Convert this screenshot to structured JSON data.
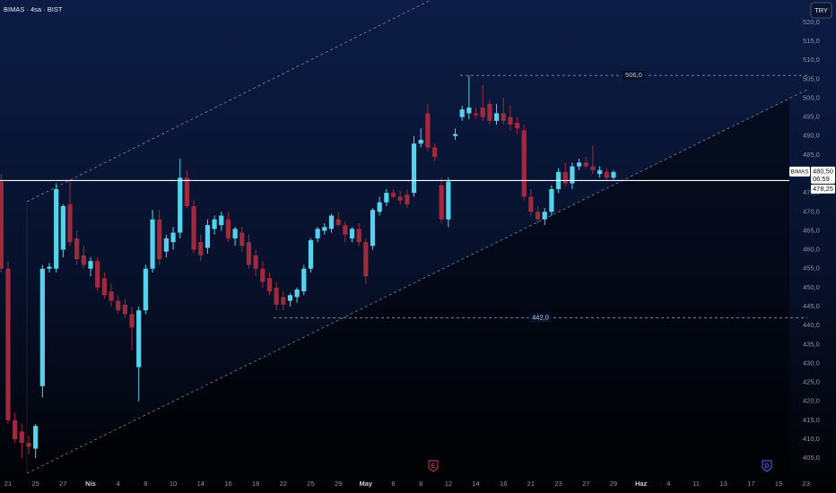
{
  "chart_data": {
    "type": "candlestick",
    "title": "BIMAS · 4sa · BIST",
    "currency": "TRY",
    "symbol": "BIMAS",
    "up_color": "#56d3ec",
    "down_color": "#9e2a3e",
    "open": [
      478,
      455,
      415,
      412,
      409,
      407.5,
      424,
      455,
      455,
      460,
      472,
      463,
      458.5,
      455,
      457,
      452.5,
      449,
      446.5,
      445.5,
      443,
      429,
      444,
      455,
      468,
      459.5,
      462,
      464.5,
      479,
      471.5,
      462,
      460.5,
      465.5,
      466.5,
      468,
      463,
      464.5,
      462,
      458.5,
      455,
      452.5,
      450,
      447.5,
      446.5,
      447.5,
      449,
      455,
      463,
      465,
      465.5,
      468,
      466.5,
      463,
      465.5,
      462,
      461,
      470,
      472.5,
      475,
      474,
      474.5,
      475,
      488,
      496,
      487,
      477,
      468,
      490,
      495,
      496,
      496,
      497.5,
      498.5,
      494,
      496,
      495,
      493.5,
      491.5,
      474,
      470,
      468,
      470,
      476,
      480.5,
      477.5,
      482,
      483,
      482,
      480,
      480.5,
      479
    ],
    "high": [
      480,
      457,
      417,
      414,
      411,
      414,
      456,
      456.5,
      477.5,
      472,
      478.5,
      465,
      461,
      458,
      458,
      454,
      451,
      448,
      447,
      445,
      445,
      456,
      470.5,
      470.5,
      464,
      466,
      484,
      481,
      473,
      464,
      468,
      469,
      470,
      470,
      466,
      466,
      464,
      460,
      457,
      454,
      451.5,
      449,
      448.5,
      450,
      456,
      463,
      466,
      467,
      469.5,
      470,
      467.5,
      466,
      467,
      463,
      471,
      474,
      476,
      476,
      475.5,
      476,
      490,
      492,
      498.5,
      488,
      479,
      479,
      492,
      498,
      506,
      497.5,
      503.5,
      499.5,
      498.5,
      500,
      498,
      495,
      493,
      476,
      471.5,
      471,
      477,
      481.5,
      483,
      483,
      484,
      484.5,
      487.5,
      482,
      481.5,
      481
    ],
    "low": [
      454,
      414,
      409,
      405,
      406,
      405,
      421,
      454,
      454,
      458,
      461,
      456,
      455,
      453,
      449,
      447,
      445,
      443,
      442,
      433.5,
      420,
      443,
      454,
      456,
      458,
      460,
      463,
      471,
      459,
      457,
      459,
      464,
      465,
      462,
      461,
      459.5,
      455,
      453,
      450,
      448,
      444,
      444,
      445,
      446,
      448,
      454,
      462,
      464,
      464.5,
      466,
      462,
      462,
      461,
      451,
      460,
      469,
      471.5,
      473.5,
      472,
      471,
      474,
      487,
      486,
      483.5,
      467,
      466,
      489,
      494,
      494.5,
      494.5,
      494,
      493,
      493,
      493,
      491.5,
      490.5,
      473,
      469,
      467,
      466.5,
      469,
      475,
      476.5,
      476,
      481,
      481.5,
      480,
      479,
      478,
      478.5
    ],
    "close": [
      455,
      415,
      410,
      409,
      408,
      413.5,
      455,
      455.5,
      476,
      471.5,
      462,
      457.5,
      456,
      457,
      450,
      448,
      446.5,
      444,
      443,
      439.5,
      444,
      455,
      468,
      457.5,
      463,
      464.5,
      479,
      471.5,
      460,
      458.5,
      466.5,
      468,
      469,
      463,
      465.5,
      461,
      456,
      455,
      451.5,
      449,
      445.5,
      445.5,
      448,
      449.5,
      455,
      462.5,
      465.5,
      466,
      469,
      466.5,
      464,
      465.5,
      462,
      453,
      470.5,
      472.5,
      475,
      474,
      473,
      472,
      488,
      489,
      487,
      484.5,
      468,
      478,
      490.5,
      497,
      497.5,
      495.5,
      495,
      494,
      496,
      494,
      493,
      492,
      474,
      470,
      468,
      470,
      476,
      480.5,
      477.5,
      482,
      483,
      482,
      481,
      481,
      479,
      480.5
    ],
    "xlim": [
      -0.17,
      121.34
    ],
    "ylim": [
      401,
      525.9
    ],
    "xticks": [
      {
        "value": 1,
        "label": "21"
      },
      {
        "value": 5,
        "label": "25"
      },
      {
        "value": 9,
        "label": "27"
      },
      {
        "value": 13,
        "label": "Nis"
      },
      {
        "value": 17,
        "label": "4"
      },
      {
        "value": 21,
        "label": "8"
      },
      {
        "value": 25,
        "label": "10"
      },
      {
        "value": 29,
        "label": "14"
      },
      {
        "value": 33,
        "label": "16"
      },
      {
        "value": 37,
        "label": "18"
      },
      {
        "value": 41,
        "label": "22"
      },
      {
        "value": 45,
        "label": "25"
      },
      {
        "value": 49,
        "label": "29"
      },
      {
        "value": 53,
        "label": "May"
      },
      {
        "value": 57,
        "label": "6"
      },
      {
        "value": 61,
        "label": "8"
      },
      {
        "value": 65,
        "label": "12"
      },
      {
        "value": 69,
        "label": "14"
      },
      {
        "value": 73,
        "label": "16"
      },
      {
        "value": 77,
        "label": "21"
      },
      {
        "value": 81,
        "label": "23"
      },
      {
        "value": 85,
        "label": "27"
      },
      {
        "value": 89,
        "label": "29"
      },
      {
        "value": 93,
        "label": "Haz"
      },
      {
        "value": 97,
        "label": "4"
      },
      {
        "value": 101,
        "label": "11"
      },
      {
        "value": 105,
        "label": "13"
      },
      {
        "value": 109,
        "label": "17"
      },
      {
        "value": 113,
        "label": "19"
      },
      {
        "value": 117,
        "label": "23"
      }
    ],
    "yticks": [
      {
        "value": 405,
        "label": "405,0"
      },
      {
        "value": 410,
        "label": "410,0"
      },
      {
        "value": 415,
        "label": "415,0"
      },
      {
        "value": 420,
        "label": "420,0"
      },
      {
        "value": 425,
        "label": "425,0"
      },
      {
        "value": 430,
        "label": "430,0"
      },
      {
        "value": 435,
        "label": "435,0"
      },
      {
        "value": 440,
        "label": "440,0"
      },
      {
        "value": 445,
        "label": "445,0"
      },
      {
        "value": 450,
        "label": "450,0"
      },
      {
        "value": 455,
        "label": "455,0"
      },
      {
        "value": 460,
        "label": "460,0"
      },
      {
        "value": 465,
        "label": "465,0"
      },
      {
        "value": 470,
        "label": "470,0"
      },
      {
        "value": 475,
        "label": "475,0"
      },
      {
        "value": 480,
        "label": "480,0"
      },
      {
        "value": 485,
        "label": "485,0"
      },
      {
        "value": 490,
        "label": "490,0"
      },
      {
        "value": 495,
        "label": "495,0"
      },
      {
        "value": 500,
        "label": "500,0"
      },
      {
        "value": 505,
        "label": "505,0"
      },
      {
        "value": 510,
        "label": "510,0"
      },
      {
        "value": 515,
        "label": "515,0"
      },
      {
        "value": 520,
        "label": "520,0"
      }
    ],
    "levels": [
      {
        "value": 506,
        "label": "506,0",
        "start": 66.7
      },
      {
        "value": 442,
        "label": "442,0",
        "start": 39.6
      }
    ],
    "horizontal_line": {
      "value": 478.25,
      "label": "478,25"
    },
    "last_price": {
      "value": 480.5,
      "label": "480,50"
    },
    "countdown": "06:59",
    "events": [
      {
        "label": "E",
        "at": 62.8,
        "color": "#b0324c"
      },
      {
        "label": "D",
        "at": 111.3,
        "color": "#3b5bd6"
      }
    ]
  }
}
